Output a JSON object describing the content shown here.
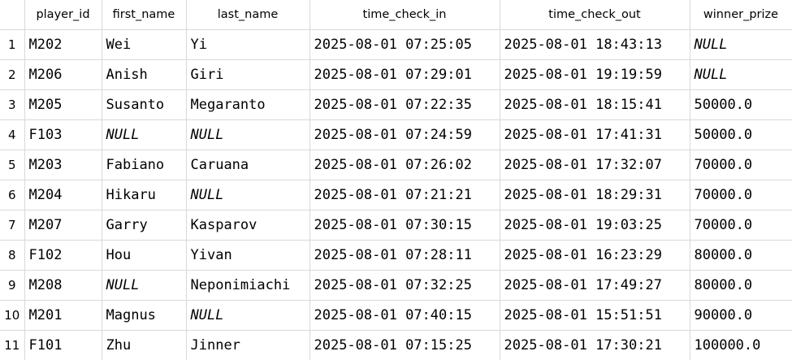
{
  "columns": [
    "",
    "player_id",
    "first_name",
    "last_name",
    "time_check_in",
    "time_check_out",
    "winner_prize"
  ],
  "rows": [
    {
      "n": "1",
      "player_id": "M202",
      "first_name": "Wei",
      "last_name": "Yi",
      "time_check_in": "2025-08-01 07:25:05",
      "time_check_out": "2025-08-01 18:43:13",
      "winner_prize": "NULL"
    },
    {
      "n": "2",
      "player_id": "M206",
      "first_name": "Anish",
      "last_name": "Giri",
      "time_check_in": "2025-08-01 07:29:01",
      "time_check_out": "2025-08-01 19:19:59",
      "winner_prize": "NULL"
    },
    {
      "n": "3",
      "player_id": "M205",
      "first_name": "Susanto",
      "last_name": "Megaranto",
      "time_check_in": "2025-08-01 07:22:35",
      "time_check_out": "2025-08-01 18:15:41",
      "winner_prize": "50000.0"
    },
    {
      "n": "4",
      "player_id": "F103",
      "first_name": "NULL",
      "last_name": "NULL",
      "time_check_in": "2025-08-01 07:24:59",
      "time_check_out": "2025-08-01 17:41:31",
      "winner_prize": "50000.0"
    },
    {
      "n": "5",
      "player_id": "M203",
      "first_name": "Fabiano",
      "last_name": "Caruana",
      "time_check_in": "2025-08-01 07:26:02",
      "time_check_out": "2025-08-01 17:32:07",
      "winner_prize": "70000.0"
    },
    {
      "n": "6",
      "player_id": "M204",
      "first_name": "Hikaru",
      "last_name": "NULL",
      "time_check_in": "2025-08-01 07:21:21",
      "time_check_out": "2025-08-01 18:29:31",
      "winner_prize": "70000.0"
    },
    {
      "n": "7",
      "player_id": "M207",
      "first_name": "Garry",
      "last_name": "Kasparov",
      "time_check_in": "2025-08-01 07:30:15",
      "time_check_out": "2025-08-01 19:03:25",
      "winner_prize": "70000.0"
    },
    {
      "n": "8",
      "player_id": "F102",
      "first_name": "Hou",
      "last_name": "Yivan",
      "time_check_in": "2025-08-01 07:28:11",
      "time_check_out": "2025-08-01 16:23:29",
      "winner_prize": "80000.0"
    },
    {
      "n": "9",
      "player_id": "M208",
      "first_name": "NULL",
      "last_name": "Neponimiachi",
      "time_check_in": "2025-08-01 07:32:25",
      "time_check_out": "2025-08-01 17:49:27",
      "winner_prize": "80000.0"
    },
    {
      "n": "10",
      "player_id": "M201",
      "first_name": "Magnus",
      "last_name": "NULL",
      "time_check_in": "2025-08-01 07:40:15",
      "time_check_out": "2025-08-01 15:51:51",
      "winner_prize": "90000.0"
    },
    {
      "n": "11",
      "player_id": "F101",
      "first_name": "Zhu",
      "last_name": "Jinner",
      "time_check_in": "2025-08-01 07:15:25",
      "time_check_out": "2025-08-01 17:30:21",
      "winner_prize": "100000.0"
    }
  ]
}
